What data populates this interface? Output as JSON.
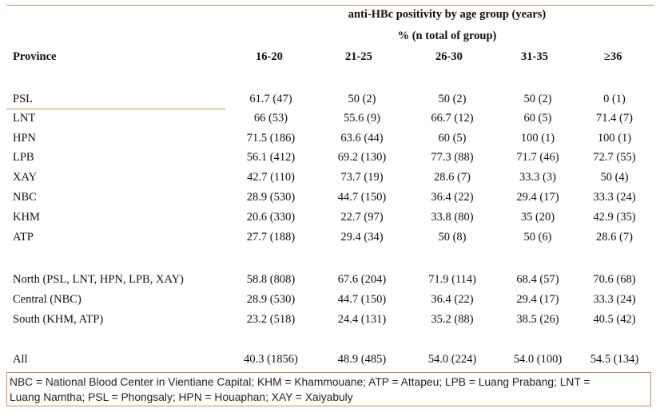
{
  "header": {
    "title": "anti-HBc positivity by age group (years)",
    "subtitle": "% (n total of group)",
    "province_label": "Province",
    "columns": [
      "16-20",
      "21-25",
      "26-30",
      "31-35",
      "≥36"
    ]
  },
  "rows": [
    {
      "province": "PSL",
      "values": [
        "61.7 (47)",
        "50 (2)",
        "50 (2)",
        "50 (2)",
        "0 (1)"
      ]
    },
    {
      "province": "LNT",
      "values": [
        "66 (53)",
        "55.6 (9)",
        "66.7 (12)",
        "60 (5)",
        "71.4 (7)"
      ]
    },
    {
      "province": "HPN",
      "values": [
        "71.5 (186)",
        "63.6 (44)",
        "60 (5)",
        "100 (1)",
        "100 (1)"
      ]
    },
    {
      "province": "LPB",
      "values": [
        "56.1 (412)",
        "69.2 (130)",
        "77.3 (88)",
        "71.7 (46)",
        "72.7 (55)"
      ]
    },
    {
      "province": "XAY",
      "values": [
        "42.7 (110)",
        "73.7 (19)",
        "28.6 (7)",
        "33.3 (3)",
        "50 (4)"
      ]
    },
    {
      "province": "NBC",
      "values": [
        "28.9 (530)",
        "44.7 (150)",
        "36.4 (22)",
        "29.4 (17)",
        "33.3 (24)"
      ]
    },
    {
      "province": "KHM",
      "values": [
        "20.6 (330)",
        "22.7 (97)",
        "33.8 (80)",
        "35 (20)",
        "42.9 (35)"
      ]
    },
    {
      "province": "ATP",
      "values": [
        "27.7 (188)",
        "29.4 (34)",
        "50 (8)",
        "50 (6)",
        "28.6 (7)"
      ]
    },
    {
      "province": "North (PSL, LNT, HPN, LPB, XAY)",
      "values": [
        "58.8 (808)",
        "67.6 (204)",
        "71.9 (114)",
        "68.4 (57)",
        "70.6 (68)"
      ]
    },
    {
      "province": "Central (NBC)",
      "values": [
        "28.9 (530)",
        "44.7 (150)",
        "36.4 (22)",
        "29.4 (17)",
        "33.3 (24)"
      ]
    },
    {
      "province": "South (KHM, ATP)",
      "values": [
        "23.2 (518)",
        "24.4 (131)",
        "35.2 (88)",
        "38.5 (26)",
        "40.5 (42)"
      ]
    },
    {
      "province": "All",
      "values": [
        "40.3 (1856)",
        "48.9 (485)",
        "54.0 (224)",
        "54.0 (100)",
        "54.5 (134)"
      ]
    }
  ],
  "footnote": {
    "line1": "NBC = National Blood Center in Vientiane Capital; KHM = Khammouane; ATP = Attapeu; LPB = Luang Prabang; LNT =",
    "line2": "Luang Namtha; PSL = Phongsaly; HPN = Houaphan; XAY = Xaiyabuly"
  }
}
